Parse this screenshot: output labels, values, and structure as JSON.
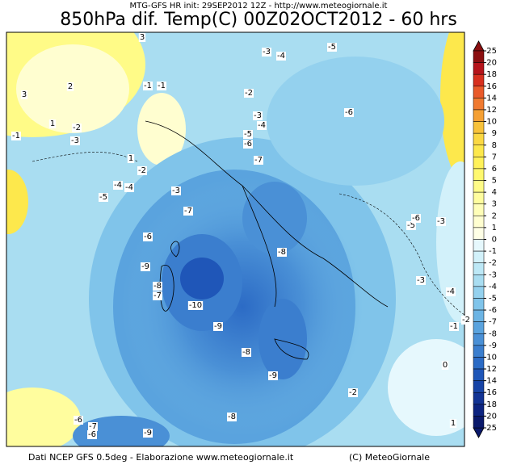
{
  "header": {
    "init": "MTG-GFS HR init: 29SEP2012 12Z - http://www.meteogiornale.it",
    "title": "850hPa dif. Temp(C) 00Z02OCT2012 - 60 hrs"
  },
  "footer": {
    "source": "Dati NCEP GFS 0.5deg - Elaborazione www.meteogiornale.it",
    "copyright": "(C) MeteoGiornale"
  },
  "colorbar": {
    "levels": [
      25,
      20,
      18,
      16,
      14,
      12,
      10,
      9,
      8,
      7,
      6,
      5,
      4,
      3,
      2,
      1,
      0,
      -1,
      -2,
      -3,
      -4,
      -5,
      -6,
      -7,
      -8,
      -9,
      -10,
      -12,
      -14,
      -16,
      -18,
      -20,
      -25
    ],
    "colors": [
      "#8b0f10",
      "#b5141b",
      "#d7301f",
      "#e95a2a",
      "#f07a30",
      "#f5a034",
      "#f8c23a",
      "#fbd843",
      "#fde84c",
      "#fff159",
      "#fff86e",
      "#fffb87",
      "#fffd9e",
      "#fffeb8",
      "#fffed0",
      "#ffffe6",
      "#e6f8fd",
      "#d2f1fa",
      "#bde8f6",
      "#a9ddf1",
      "#94d1ee",
      "#80c4ea",
      "#6cb4e4",
      "#5aa3de",
      "#4a90d6",
      "#3b7ece",
      "#2c6bc5",
      "#1f56b8",
      "#1744a6",
      "#123394",
      "#0d2480",
      "#0a196b"
    ]
  },
  "contour_labels": [
    "3",
    "2",
    "-1",
    "1",
    "-2",
    "-3",
    "-1",
    "-1",
    "1",
    "-2",
    "-4",
    "-4",
    "-5",
    "-3",
    "-7",
    "-6",
    "-9",
    "-8",
    "-7",
    "-10",
    "-9",
    "-8",
    "-9",
    "-8",
    "-6",
    "-7",
    "-6",
    "-9",
    "-2",
    "0",
    "1",
    "-2",
    "-1",
    "-4",
    "-3",
    "-5",
    "-6",
    "-3",
    "-6",
    "-5",
    "-3",
    "-4",
    "-2",
    "-3",
    "-4",
    "-5",
    "-6",
    "-7",
    "-8",
    "3"
  ]
}
